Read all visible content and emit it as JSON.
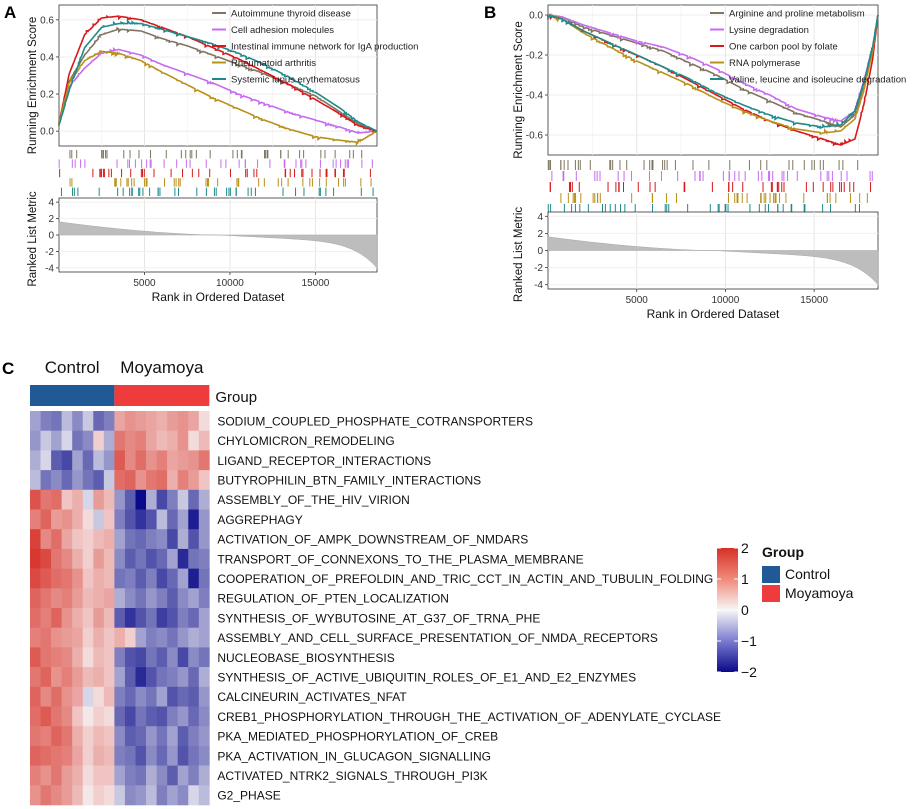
{
  "chart_data": [
    {
      "type": "line",
      "panel_label": "A",
      "ylabel_top": "Running Enrichment Score",
      "ylabel_bottom": "Ranked List Metric",
      "xlabel": "Rank in Ordered Dataset",
      "x_ticks": [
        5000,
        10000,
        15000
      ],
      "x_tick_labels": [
        "5000",
        "10000",
        "15000"
      ],
      "xlim": [
        0,
        18600
      ],
      "es_ylim": [
        -0.08,
        0.68
      ],
      "es_y_ticks": [
        0,
        0.2,
        0.4,
        0.6
      ],
      "es_y_tick_labels": [
        "0.0",
        "0.2",
        "0.4",
        "0.6"
      ],
      "metric_ylim": [
        -4.5,
        4.5
      ],
      "metric_y_ticks": [
        4,
        2,
        0,
        -2,
        -4
      ],
      "metric_y_tick_labels": [
        "4",
        "2",
        "0",
        "-2",
        "-4"
      ],
      "metric_max": 1.6,
      "metric_min": -4.0,
      "series": [
        {
          "name": "Autoimmune thyroid disease",
          "color": "#7f7561",
          "x": [
            0,
            600,
            1500,
            2500,
            3500,
            4800,
            6000,
            7500,
            9000,
            10500,
            12000,
            13500,
            15000,
            16500,
            17500,
            18600
          ],
          "values": [
            0.03,
            0.27,
            0.41,
            0.52,
            0.55,
            0.54,
            0.5,
            0.46,
            0.41,
            0.36,
            0.31,
            0.25,
            0.19,
            0.1,
            0.04,
            0.0
          ]
        },
        {
          "name": "Cell adhesion molecules",
          "color": "#c76bf0",
          "x": [
            0,
            600,
            1500,
            2500,
            3500,
            4800,
            6000,
            7500,
            9000,
            10500,
            12000,
            13500,
            15000,
            16500,
            17500,
            18600
          ],
          "values": [
            0.04,
            0.24,
            0.34,
            0.42,
            0.44,
            0.41,
            0.36,
            0.31,
            0.26,
            0.2,
            0.15,
            0.1,
            0.06,
            0.02,
            -0.01,
            0.0
          ]
        },
        {
          "name": "Intestinal immune network for IgA production",
          "color": "#d7191c",
          "x": [
            0,
            600,
            1500,
            2500,
            3500,
            4800,
            6000,
            7500,
            9000,
            10500,
            12000,
            13500,
            15000,
            16500,
            17500,
            18600
          ],
          "values": [
            0.04,
            0.31,
            0.52,
            0.61,
            0.62,
            0.6,
            0.56,
            0.51,
            0.45,
            0.39,
            0.32,
            0.25,
            0.17,
            0.09,
            0.03,
            0.0
          ]
        },
        {
          "name": "Rheumatoid arthritis",
          "color": "#b8901a",
          "x": [
            0,
            600,
            1500,
            2500,
            3500,
            4800,
            6000,
            7500,
            9000,
            10500,
            12000,
            13500,
            15000,
            16500,
            17500,
            18600
          ],
          "values": [
            0.04,
            0.26,
            0.38,
            0.43,
            0.42,
            0.38,
            0.32,
            0.25,
            0.18,
            0.12,
            0.06,
            0.01,
            -0.03,
            -0.05,
            -0.06,
            0.0
          ]
        },
        {
          "name": "Systemic lupus erythematosus",
          "color": "#1f8a8a",
          "x": [
            0,
            600,
            1500,
            2500,
            3500,
            4800,
            6000,
            7500,
            9000,
            10500,
            12000,
            13500,
            15000,
            16500,
            17500,
            18600
          ],
          "values": [
            0.03,
            0.22,
            0.45,
            0.56,
            0.58,
            0.58,
            0.55,
            0.51,
            0.47,
            0.42,
            0.36,
            0.29,
            0.21,
            0.12,
            0.05,
            0.0
          ]
        }
      ],
      "legend_position": "top-right"
    },
    {
      "type": "line",
      "panel_label": "B",
      "ylabel_top": "Running Enrichment Score",
      "ylabel_bottom": "Ranked List Metric",
      "xlabel": "Rank in Ordered Dataset",
      "x_ticks": [
        5000,
        10000,
        15000
      ],
      "x_tick_labels": [
        "5000",
        "10000",
        "15000"
      ],
      "xlim": [
        0,
        18600
      ],
      "es_ylim": [
        -0.7,
        0.05
      ],
      "es_y_ticks": [
        0,
        -0.2,
        -0.4,
        -0.6
      ],
      "es_y_tick_labels": [
        "0.0",
        "-0.2",
        "-0.4",
        "-0.6"
      ],
      "metric_ylim": [
        -4.5,
        4.5
      ],
      "metric_y_ticks": [
        4,
        2,
        0,
        -2,
        -4
      ],
      "metric_y_tick_labels": [
        "4",
        "2",
        "0",
        "-2",
        "-4"
      ],
      "metric_max": 1.6,
      "metric_min": -4.0,
      "series": [
        {
          "name": "Arginine and proline metabolism",
          "color": "#7f7561",
          "x": [
            0,
            800,
            2000,
            3500,
            5000,
            6500,
            8000,
            9500,
            11000,
            12500,
            14000,
            15500,
            16500,
            17300,
            17800,
            18300,
            18600
          ],
          "values": [
            0.0,
            -0.01,
            -0.06,
            -0.1,
            -0.14,
            -0.18,
            -0.24,
            -0.3,
            -0.37,
            -0.43,
            -0.49,
            -0.53,
            -0.56,
            -0.5,
            -0.35,
            -0.18,
            0.0
          ]
        },
        {
          "name": "Lysine degradation",
          "color": "#c76bf0",
          "x": [
            0,
            800,
            2000,
            3500,
            5000,
            6500,
            8000,
            9500,
            11000,
            12500,
            14000,
            15500,
            16500,
            17300,
            17800,
            18300,
            18600
          ],
          "values": [
            0.0,
            -0.01,
            -0.05,
            -0.09,
            -0.13,
            -0.16,
            -0.21,
            -0.27,
            -0.34,
            -0.4,
            -0.47,
            -0.51,
            -0.53,
            -0.48,
            -0.33,
            -0.16,
            0.0
          ]
        },
        {
          "name": "One carbon pool by folate",
          "color": "#d7191c",
          "x": [
            0,
            800,
            2000,
            3500,
            5000,
            6500,
            8000,
            9500,
            11000,
            12500,
            14000,
            15500,
            16500,
            17300,
            17800,
            18300,
            18600
          ],
          "values": [
            0.0,
            -0.02,
            -0.08,
            -0.14,
            -0.2,
            -0.26,
            -0.33,
            -0.4,
            -0.47,
            -0.53,
            -0.58,
            -0.62,
            -0.65,
            -0.62,
            -0.45,
            -0.22,
            0.0
          ]
        },
        {
          "name": "RNA polymerase",
          "color": "#b8901a",
          "x": [
            0,
            800,
            2000,
            3500,
            5000,
            6500,
            8000,
            9500,
            11000,
            12500,
            14000,
            15500,
            16500,
            17300,
            17800,
            18300,
            18600
          ],
          "values": [
            0.0,
            -0.02,
            -0.09,
            -0.16,
            -0.23,
            -0.29,
            -0.35,
            -0.42,
            -0.48,
            -0.53,
            -0.57,
            -0.59,
            -0.58,
            -0.52,
            -0.38,
            -0.18,
            0.0
          ]
        },
        {
          "name": "Valine, leucine and isoleucine degradation",
          "color": "#1f8a8a",
          "x": [
            0,
            800,
            2000,
            3500,
            5000,
            6500,
            8000,
            9500,
            11000,
            12500,
            14000,
            15500,
            16500,
            17300,
            17800,
            18300,
            18600
          ],
          "values": [
            0.0,
            -0.02,
            -0.08,
            -0.14,
            -0.2,
            -0.26,
            -0.32,
            -0.39,
            -0.45,
            -0.5,
            -0.54,
            -0.56,
            -0.55,
            -0.48,
            -0.34,
            -0.16,
            0.0
          ]
        }
      ],
      "legend_position": "top-right"
    },
    {
      "type": "heatmap",
      "panel_label": "C",
      "group_title": "Group",
      "column_groups": [
        {
          "name": "Control",
          "count": 8,
          "color": "#1f5a96"
        },
        {
          "name": "Moyamoya",
          "count": 9,
          "color": "#ee3b3b"
        }
      ],
      "rows": [
        "SODIUM_COUPLED_PHOSPHATE_COTRANSPORTERS",
        "CHYLOMICRON_REMODELING",
        "LIGAND_RECEPTOR_INTERACTIONS",
        "BUTYROPHILIN_BTN_FAMILY_INTERACTIONS",
        "ASSEMBLY_OF_THE_HIV_VIRION",
        "AGGREPHAGY",
        "ACTIVATION_OF_AMPK_DOWNSTREAM_OF_NMDARS",
        "TRANSPORT_OF_CONNEXONS_TO_THE_PLASMA_MEMBRANE",
        "COOPERATION_OF_PREFOLDIN_AND_TRIC_CCT_IN_ACTIN_AND_TUBULIN_FOLDING",
        "REGULATION_OF_PTEN_LOCALIZATION",
        "SYNTHESIS_OF_WYBUTOSINE_AT_G37_OF_TRNA_PHE",
        "ASSEMBLY_AND_CELL_SURFACE_PRESENTATION_OF_NMDA_RECEPTORS",
        "NUCLEOBASE_BIOSYNTHESIS",
        "SYNTHESIS_OF_ACTIVE_UBIQUITIN_ROLES_OF_E1_AND_E2_ENZYMES",
        "CALCINEURIN_ACTIVATES_NFAT",
        "CREB1_PHOSPHORYLATION_THROUGH_THE_ACTIVATION_OF_ADENYLATE_CYCLASE",
        "PKA_MEDIATED_PHOSPHORYLATION_OF_CREB",
        "PKA_ACTIVATION_IN_GLUCAGON_SIGNALLING",
        "ACTIVATED_NTRK2_SIGNALS_THROUGH_PI3K",
        "G2_PHASE"
      ],
      "values": [
        [
          -0.6,
          -0.9,
          -1.0,
          -0.4,
          -0.8,
          -0.3,
          -1.1,
          -0.9,
          0.7,
          0.9,
          0.8,
          0.7,
          0.6,
          0.8,
          0.9,
          0.7,
          0.2
        ],
        [
          -0.7,
          -0.3,
          -0.6,
          -0.2,
          -1.0,
          -0.8,
          0.3,
          -0.5,
          1.2,
          1.0,
          1.1,
          0.7,
          0.5,
          0.6,
          0.9,
          0.2,
          0.5
        ],
        [
          -0.5,
          -0.2,
          -1.2,
          -1.4,
          -0.6,
          -1.1,
          -0.4,
          -0.7,
          1.5,
          1.0,
          1.3,
          0.9,
          1.1,
          0.7,
          0.8,
          0.9,
          1.2
        ],
        [
          -0.4,
          -1.0,
          -0.8,
          -1.1,
          -0.7,
          -1.0,
          -1.2,
          -0.3,
          1.3,
          1.4,
          0.9,
          1.2,
          1.3,
          0.6,
          1.1,
          0.8,
          0.4
        ],
        [
          1.6,
          1.2,
          1.3,
          0.4,
          0.6,
          -0.2,
          0.8,
          0.5,
          -0.7,
          -1.2,
          -2.0,
          -0.5,
          -1.4,
          -0.9,
          -0.3,
          -1.1,
          -0.5
        ],
        [
          1.1,
          1.4,
          0.8,
          0.9,
          0.6,
          0.2,
          -0.3,
          0.4,
          -0.9,
          -1.3,
          -1.6,
          -1.3,
          -0.4,
          -1.1,
          -0.6,
          -1.8,
          -0.7
        ],
        [
          1.8,
          1.0,
          1.3,
          0.7,
          0.4,
          0.3,
          0.5,
          0.6,
          -0.6,
          -1.0,
          -1.1,
          -0.9,
          -0.8,
          -1.4,
          -0.5,
          -1.3,
          -0.7
        ],
        [
          1.9,
          1.7,
          1.2,
          1.0,
          0.6,
          0.3,
          0.8,
          0.5,
          -0.8,
          -1.2,
          -1.0,
          -1.3,
          -1.1,
          -0.6,
          -1.7,
          -1.0,
          -0.9
        ],
        [
          1.7,
          1.5,
          1.3,
          1.2,
          0.9,
          0.4,
          0.6,
          0.5,
          -1.0,
          -0.9,
          -1.2,
          -0.9,
          -1.4,
          -1.1,
          -0.6,
          -1.8,
          -1.0
        ],
        [
          1.4,
          1.2,
          1.0,
          1.1,
          0.8,
          0.5,
          0.6,
          0.7,
          -0.5,
          -0.8,
          -1.0,
          -0.7,
          -0.9,
          -1.2,
          -0.8,
          -0.6,
          -0.9
        ],
        [
          1.3,
          1.1,
          1.4,
          0.9,
          0.6,
          0.4,
          0.8,
          0.5,
          -1.2,
          -1.6,
          -1.3,
          -1.0,
          -1.5,
          -1.3,
          -0.9,
          -1.1,
          -0.6
        ],
        [
          1.1,
          1.2,
          0.9,
          0.8,
          0.7,
          0.3,
          0.6,
          0.4,
          0.6,
          0.3,
          -0.6,
          -0.9,
          -0.8,
          -1.0,
          -0.7,
          -0.5,
          -0.6
        ],
        [
          1.5,
          1.2,
          1.1,
          1.0,
          0.6,
          0.2,
          0.5,
          0.4,
          -0.9,
          -1.3,
          -1.4,
          -1.0,
          -1.2,
          -0.8,
          -1.4,
          -0.8,
          -1.0
        ],
        [
          1.2,
          1.4,
          0.9,
          1.1,
          0.8,
          0.5,
          0.6,
          0.4,
          -0.6,
          -1.2,
          -1.7,
          -1.3,
          -1.0,
          -0.9,
          -0.7,
          -1.1,
          -0.5
        ],
        [
          1.4,
          1.0,
          1.3,
          0.9,
          0.7,
          -0.2,
          0.2,
          0.5,
          -0.9,
          -1.1,
          -0.8,
          -1.0,
          -0.6,
          -1.3,
          -1.1,
          -1.2,
          -0.7
        ],
        [
          1.3,
          1.5,
          1.2,
          1.0,
          0.4,
          0.1,
          0.3,
          0.2,
          -1.1,
          -1.4,
          -1.0,
          -1.2,
          -1.3,
          -0.9,
          -0.7,
          -1.1,
          -0.8
        ],
        [
          1.2,
          1.1,
          1.4,
          1.2,
          0.6,
          0.3,
          0.5,
          0.4,
          -0.8,
          -1.2,
          -1.1,
          -0.7,
          -1.0,
          -0.6,
          -1.2,
          -0.9,
          -0.7
        ],
        [
          1.4,
          1.3,
          1.2,
          1.1,
          0.7,
          0.3,
          0.6,
          0.5,
          -0.9,
          -1.0,
          -1.3,
          -0.8,
          -1.1,
          -0.7,
          -1.3,
          -1.0,
          -0.8
        ],
        [
          1.1,
          0.9,
          1.2,
          0.8,
          0.6,
          0.2,
          0.4,
          0.4,
          -0.6,
          -0.9,
          -1.0,
          -0.5,
          -0.8,
          -1.2,
          -0.6,
          -0.9,
          -0.5
        ],
        [
          0.9,
          1.2,
          1.0,
          0.8,
          0.5,
          0.1,
          0.3,
          0.2,
          -0.3,
          -0.8,
          -0.7,
          -0.4,
          -0.9,
          -0.6,
          -0.8,
          -0.2,
          -0.4
        ]
      ],
      "color_scale": {
        "min": -2,
        "max": 2,
        "low": "#0a0a8a",
        "mid": "#f7f7f7",
        "high": "#d73027"
      },
      "colorbar_ticks": [
        2,
        1,
        0,
        -1,
        -2
      ],
      "colorbar_tick_labels": [
        "2",
        "1",
        "0",
        "−1",
        "−2"
      ],
      "legend_title": "Group"
    }
  ]
}
